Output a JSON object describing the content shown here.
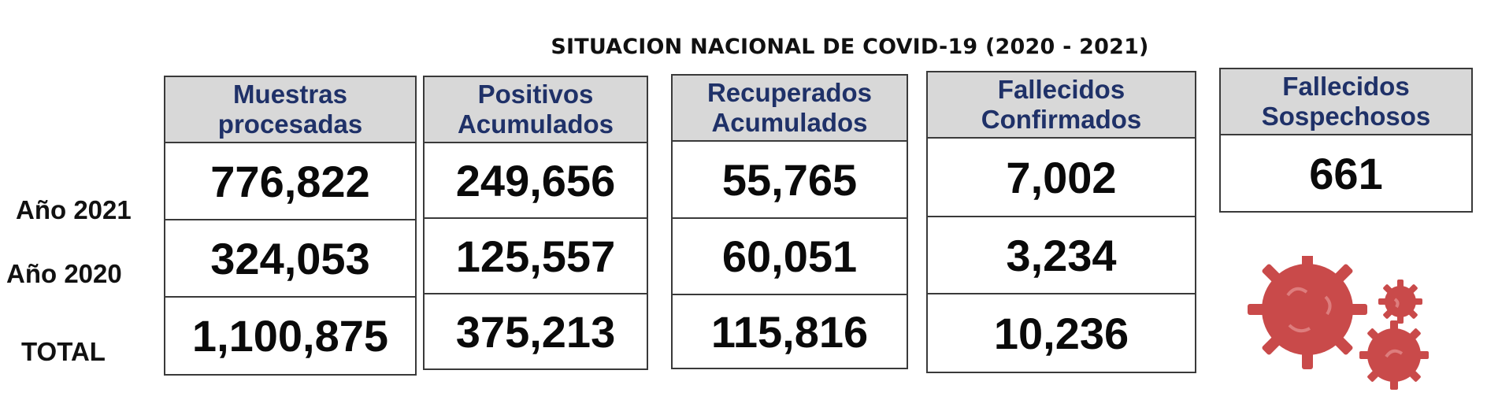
{
  "title": "SITUACION NACIONAL DE COVID-19 (2020 - 2021)",
  "row_labels": [
    "Año 2021",
    "Año 2020",
    "TOTAL"
  ],
  "columns": [
    {
      "header": [
        "Muestras",
        "procesadas"
      ],
      "values": [
        "776,822",
        "324,053",
        "1,100,875"
      ]
    },
    {
      "header": [
        "Positivos",
        "Acumulados"
      ],
      "values": [
        "249,656",
        "125,557",
        "375,213"
      ]
    },
    {
      "header": [
        "Recuperados",
        "Acumulados"
      ],
      "values": [
        "55,765",
        "60,051",
        "115,816"
      ]
    },
    {
      "header": [
        "Fallecidos",
        "Confirmados"
      ],
      "values": [
        "7,002",
        "3,234",
        "10,236"
      ]
    }
  ],
  "suspected": {
    "header": [
      "Fallecidos",
      "Sospechosos"
    ],
    "value": "661"
  },
  "colors": {
    "header_bg": "#d8d8d8",
    "header_text": "#1f3168",
    "virus": "#c94a4a"
  },
  "icon": "coronavirus-icon"
}
